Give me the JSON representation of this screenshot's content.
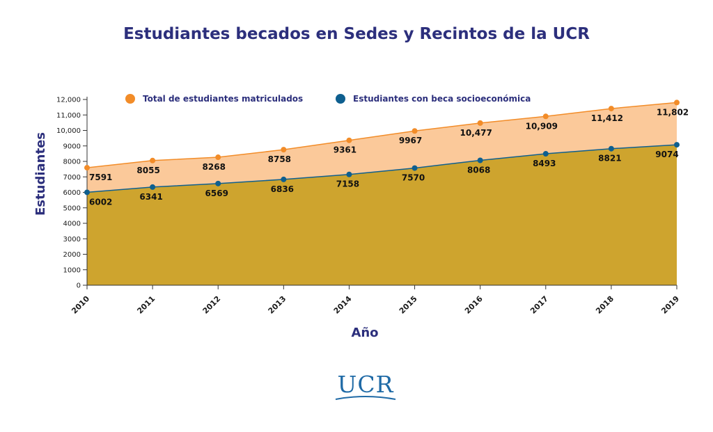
{
  "colors": {
    "title": "#2c2f7c",
    "axis_text": "#1a1a1a",
    "total_line": "#f28c28",
    "total_fill": "#fbc99a",
    "beca_line": "#0e5f8f",
    "beca_fill": "#cea42e",
    "logo": "#1f6aa6"
  },
  "logo": {
    "text": "UCR"
  },
  "chart_data": {
    "type": "area",
    "title": "Estudiantes becados en Sedes y Recintos de la UCR",
    "xlabel": "Año",
    "ylabel": "Estudiantes",
    "x": [
      "2010",
      "2011",
      "2012",
      "2013",
      "2014",
      "2015",
      "2016",
      "2017",
      "2018",
      "2019"
    ],
    "ylim": [
      0,
      12000
    ],
    "yticks": [
      "0",
      "1000",
      "2000",
      "3000",
      "4000",
      "5000",
      "6000",
      "7000",
      "8000",
      "9000",
      "10,000",
      "11,000",
      "12,000"
    ],
    "legend_position": "top",
    "grid": false,
    "series": [
      {
        "name": "Total de estudiantes matriculados",
        "values": [
          7591,
          8055,
          8268,
          8758,
          9361,
          9967,
          10477,
          10909,
          11412,
          11802
        ],
        "labels": [
          "7591",
          "8055",
          "8268",
          "8758",
          "9361",
          "9967",
          "10,477",
          "10,909",
          "11,412",
          "11,802"
        ]
      },
      {
        "name": "Estudiantes con beca socioeconómica",
        "values": [
          6002,
          6341,
          6569,
          6836,
          7158,
          7570,
          8068,
          8493,
          8821,
          9074
        ],
        "labels": [
          "6002",
          "6341",
          "6569",
          "6836",
          "7158",
          "7570",
          "8068",
          "8493",
          "8821",
          "9074"
        ]
      }
    ]
  }
}
